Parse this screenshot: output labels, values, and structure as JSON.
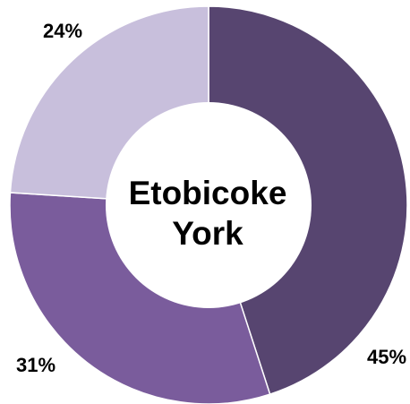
{
  "chart_data": {
    "type": "pie",
    "variant": "donut",
    "center_label": [
      "Etobicoke",
      "York"
    ],
    "slices": [
      {
        "label": "45%",
        "value": 45,
        "color": "#574570"
      },
      {
        "label": "31%",
        "value": 31,
        "color": "#7a5c9c"
      },
      {
        "label": "24%",
        "value": 24,
        "color": "#c8bfdc"
      }
    ],
    "start": "top",
    "direction": "clockwise"
  }
}
